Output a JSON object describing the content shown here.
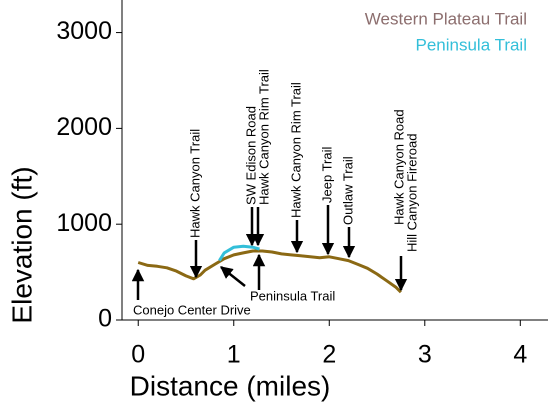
{
  "chart_data": {
    "type": "line",
    "x_label": "Distance (miles)",
    "y_label": "Elevation (ft)",
    "xlim": [
      -0.17,
      4.29
    ],
    "ylim": [
      0,
      3340
    ],
    "xticks": [
      0,
      1,
      2,
      3,
      4
    ],
    "yticks": [
      0,
      1000,
      2000,
      3000
    ],
    "series": [
      {
        "name": "Western Plateau Trail",
        "color": "#8b6914",
        "legend_color": "#8c6e6e",
        "x": [
          0,
          0.1,
          0.2,
          0.3,
          0.4,
          0.5,
          0.58,
          0.65,
          0.7,
          0.8,
          0.9,
          1.0,
          1.1,
          1.2,
          1.3,
          1.4,
          1.5,
          1.6,
          1.7,
          1.8,
          1.9,
          2.0,
          2.1,
          2.2,
          2.3,
          2.4,
          2.5,
          2.6,
          2.7,
          2.75
        ],
        "values": [
          600,
          570,
          560,
          545,
          510,
          460,
          430,
          470,
          520,
          580,
          640,
          680,
          700,
          720,
          720,
          710,
          690,
          680,
          670,
          660,
          650,
          660,
          640,
          620,
          580,
          540,
          480,
          410,
          340,
          290
        ]
      },
      {
        "name": "Peninsula Trail",
        "color": "#33bfd9",
        "legend_color": "#33bfd9",
        "x": [
          0.85,
          0.9,
          1.0,
          1.1,
          1.2,
          1.27
        ],
        "values": [
          620,
          700,
          760,
          770,
          760,
          740
        ]
      }
    ],
    "annotations": [
      "Hawk Canyon Trail",
      "SW Edison Road",
      "Hawk Canyon Rim Trail",
      "Hawk Canyon Rim Trail",
      "Jeep Trail",
      "Outlaw Trail",
      "Hawk Canyon Road",
      "Hill Canyon Fireroad",
      "Conejo Center Drive",
      "Peninsula Trail"
    ]
  }
}
